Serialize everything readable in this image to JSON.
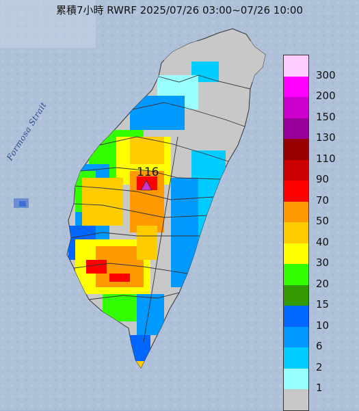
{
  "title": "累積7小時 RWRF 2025/07/26 03:00~07/26 10:00",
  "strait_label": "Formosa Strait",
  "max_marker": {
    "value": "116",
    "icon": "triangle-marker-icon",
    "color": "#cc33cc"
  },
  "legend": {
    "colors": [
      "#ffccff",
      "#ff00ff",
      "#cc00cc",
      "#990099",
      "#990000",
      "#cc0000",
      "#ff0000",
      "#ff9900",
      "#ffcc00",
      "#ffff00",
      "#33ff00",
      "#339900",
      "#0066ff",
      "#0099ff",
      "#00ccff",
      "#99ffff",
      "#c8c8c8"
    ],
    "labels": [
      "300",
      "200",
      "150",
      "130",
      "110",
      "90",
      "70",
      "50",
      "40",
      "30",
      "20",
      "15",
      "10",
      "6",
      "2",
      "1"
    ]
  }
}
